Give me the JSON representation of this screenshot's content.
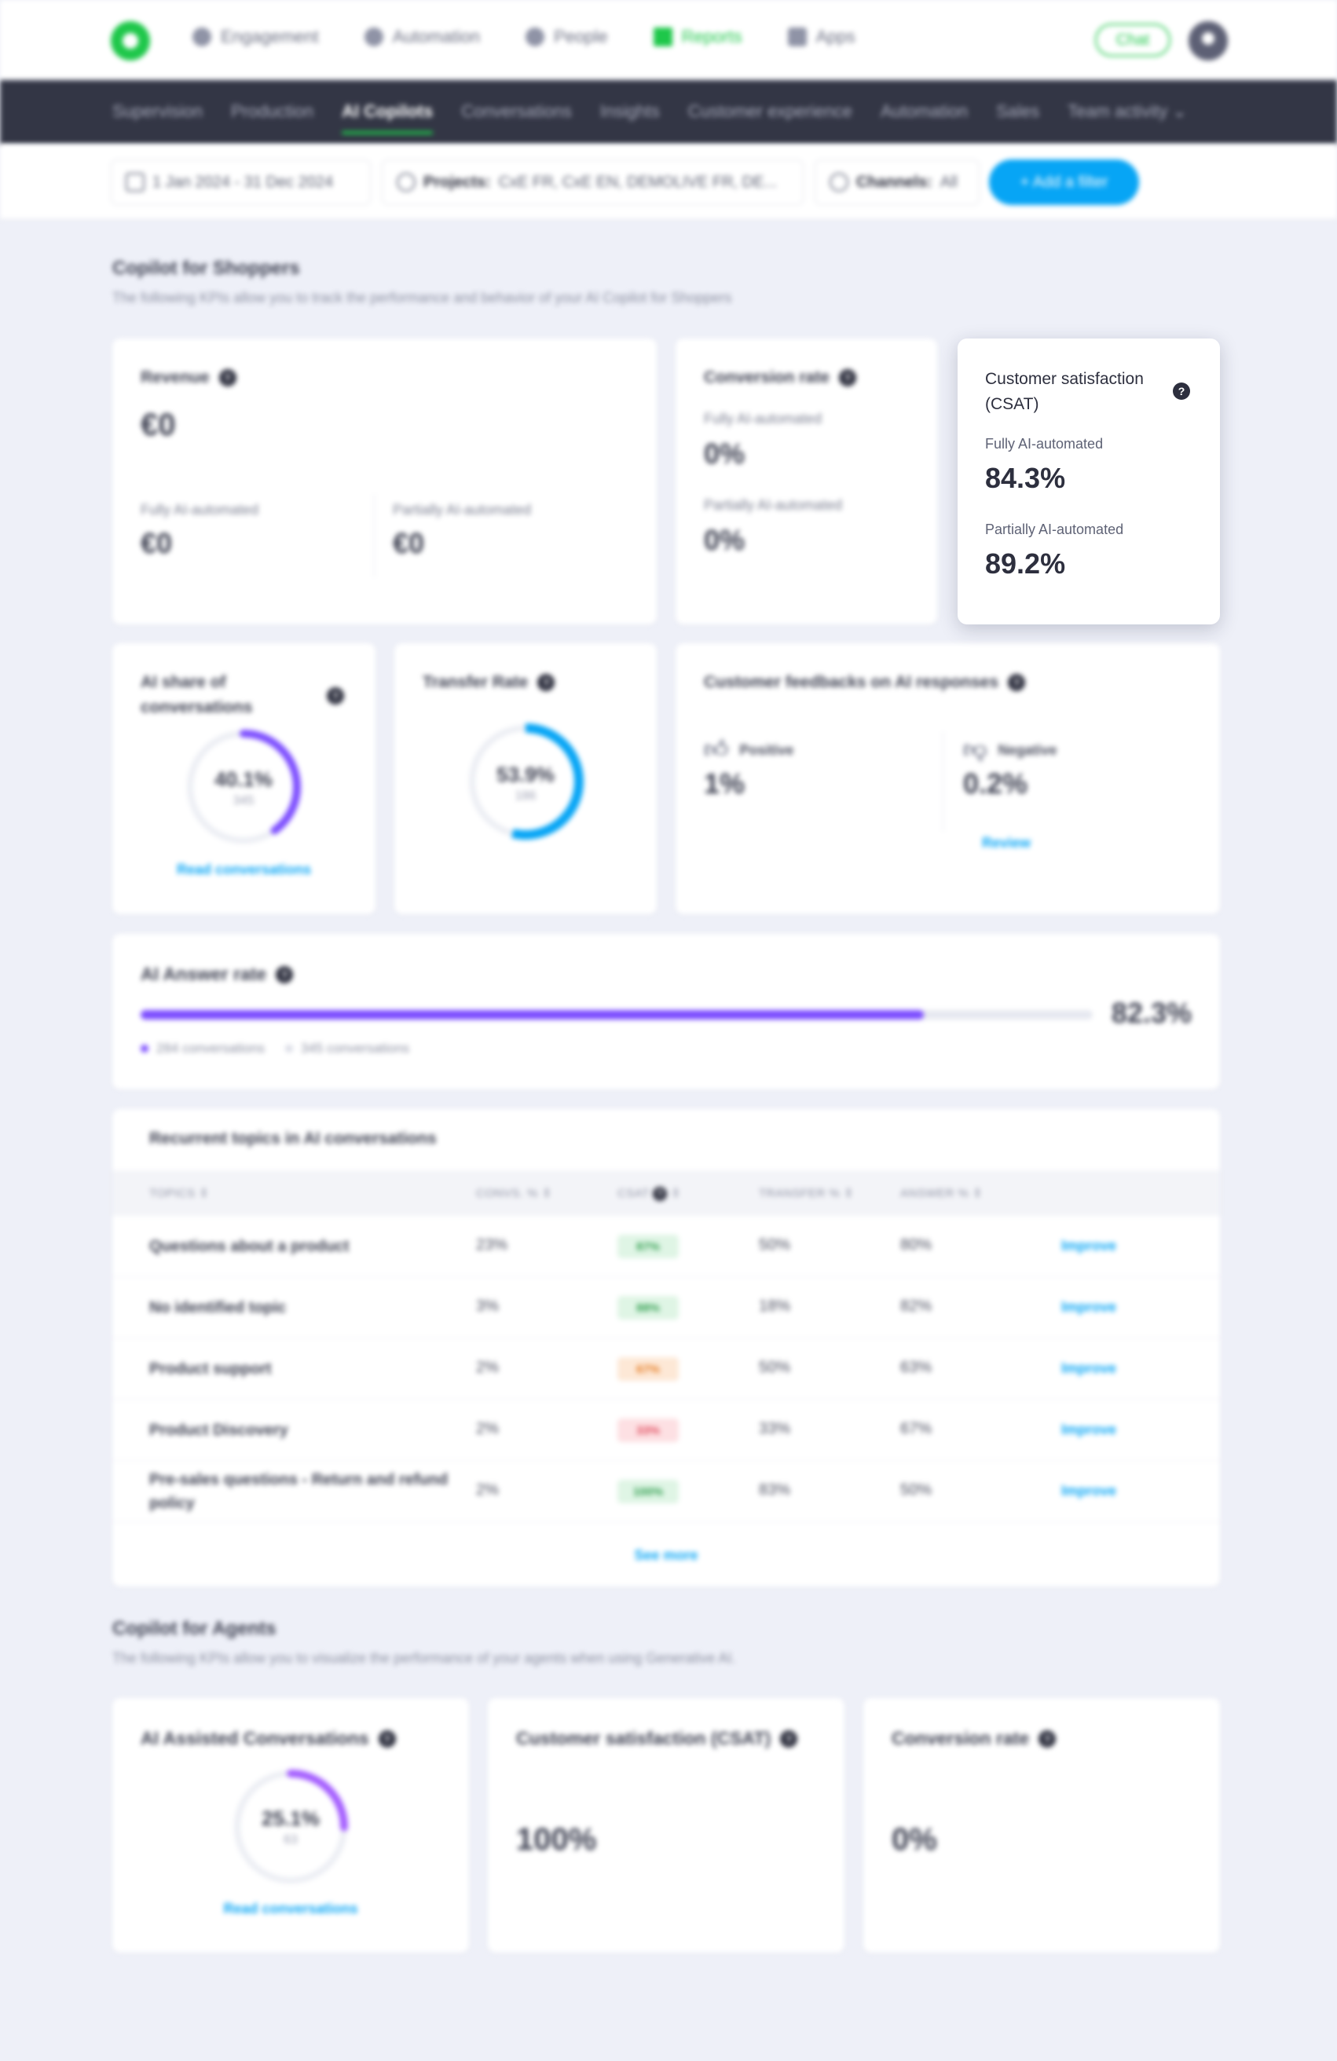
{
  "topnav": {
    "items": [
      "Engagement",
      "Automation",
      "People",
      "Reports",
      "Apps"
    ],
    "chat_label": "Chat"
  },
  "subnav": {
    "tabs": [
      "Supervision",
      "Production",
      "AI Copilots",
      "Conversations",
      "Insights",
      "Customer experience",
      "Automation",
      "Sales",
      "Team activity"
    ]
  },
  "filters": {
    "date": "1 Jan 2024 - 31 Dec 2024",
    "projects_label": "Projects:",
    "projects_value": "CxE FR, CxE EN, DEMOLIVE FR, DE...",
    "channels_label": "Channels:",
    "channels_value": "All",
    "add_filter": "+ Add a filter"
  },
  "shoppers": {
    "title": "Copilot for Shoppers",
    "subtitle": "The following KPIs allow you to track the performance and behavior of your AI Copilot for Shoppers",
    "revenue": {
      "title": "Revenue",
      "total": "€0",
      "fully_label": "Fully AI-automated",
      "fully_value": "€0",
      "partially_label": "Partially AI-automated",
      "partially_value": "€0"
    },
    "conversion": {
      "title": "Conversion rate",
      "fully_label": "Fully AI-automated",
      "fully_value": "0%",
      "partially_label": "Partially AI-automated",
      "partially_value": "0%"
    },
    "csat": {
      "title": "Customer satisfaction (CSAT)",
      "fully_label": "Fully AI-automated",
      "fully_value": "84.3%",
      "partially_label": "Partially AI-automated",
      "partially_value": "89.2%"
    },
    "ai_share": {
      "title": "AI share of conversations",
      "value": "40.1%",
      "count": "345",
      "fraction": 0.401,
      "link": "Read conversations"
    },
    "transfer": {
      "title": "Transfer Rate",
      "value": "53.9%",
      "count": "186",
      "fraction": 0.539
    },
    "feedback": {
      "title": "Customer feedbacks on AI responses",
      "positive_label": "Positive",
      "positive_value": "1%",
      "negative_label": "Negative",
      "negative_value": "0.2%",
      "review": "Review"
    },
    "answer_rate": {
      "title": "AI Answer rate",
      "value": "82.3%",
      "fraction": 0.823,
      "legend_answered": "284 conversations",
      "legend_total": "345 conversations"
    },
    "topics": {
      "title": "Recurrent topics in AI conversations",
      "headers": [
        "TOPICS",
        "CONVS. %",
        "CSAT",
        "TRANSFER %",
        "ANSWER %"
      ],
      "rows": [
        {
          "topic": "Questions about a product",
          "convs": "23%",
          "csat": "87%",
          "csat_tone": "green",
          "transfer": "50%",
          "answer": "80%",
          "action": "Improve"
        },
        {
          "topic": "No identified topic",
          "convs": "3%",
          "csat": "88%",
          "csat_tone": "green",
          "transfer": "18%",
          "answer": "82%",
          "action": "Improve"
        },
        {
          "topic": "Product support",
          "convs": "2%",
          "csat": "67%",
          "csat_tone": "orange",
          "transfer": "50%",
          "answer": "63%",
          "action": "Improve"
        },
        {
          "topic": "Product Discovery",
          "convs": "2%",
          "csat": "33%",
          "csat_tone": "red",
          "transfer": "33%",
          "answer": "67%",
          "action": "Improve"
        },
        {
          "topic": "Pre-sales questions - Return and refund policy",
          "convs": "2%",
          "csat": "100%",
          "csat_tone": "green",
          "transfer": "83%",
          "answer": "50%",
          "action": "Improve"
        }
      ],
      "see_more": "See more"
    }
  },
  "agents": {
    "title": "Copilot for Agents",
    "subtitle": "The following KPIs allow you to visualize the performance of your agents when using Generative AI.",
    "assisted": {
      "title": "AI Assisted Conversations",
      "value": "25.1%",
      "count": "63",
      "fraction": 0.251,
      "link": "Read conversations"
    },
    "csat": {
      "title": "Customer satisfaction (CSAT)",
      "value": "100%"
    },
    "conversion": {
      "title": "Conversion rate",
      "value": "0%"
    }
  },
  "colors": {
    "brand_green": "#1ec74a",
    "accent_blue": "#07a5f5",
    "purple": "#7c4dff",
    "nav_dark": "#333645"
  }
}
